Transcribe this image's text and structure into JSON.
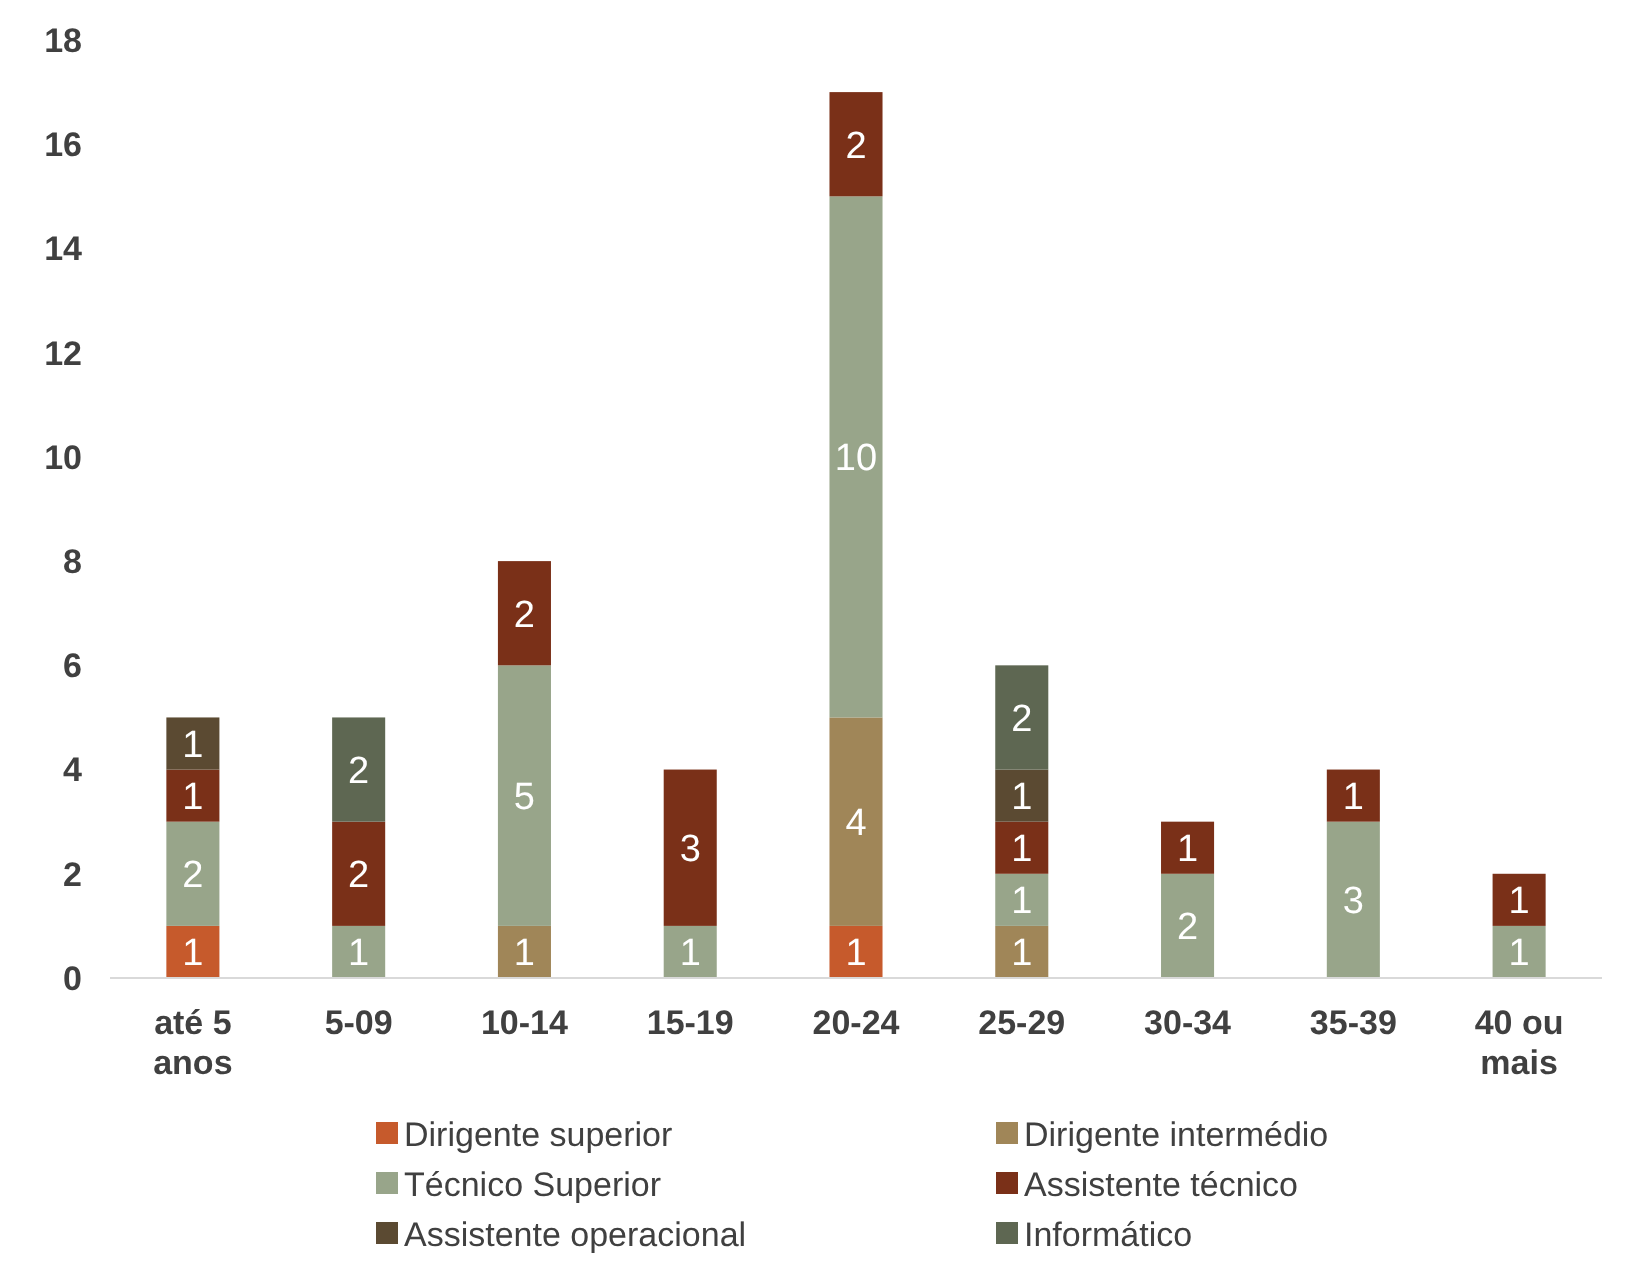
{
  "chart_data": {
    "type": "bar",
    "stacked": true,
    "categories": [
      "até 5 anos",
      "5-09",
      "10-14",
      "15-19",
      "20-24",
      "25-29",
      "30-34",
      "35-39",
      "40 ou mais"
    ],
    "series": [
      {
        "name": "Dirigente superior",
        "color": "#c65a2c",
        "values": [
          1,
          null,
          null,
          null,
          1,
          null,
          null,
          null,
          null
        ]
      },
      {
        "name": "Dirigente intermédio",
        "color": "#a08658",
        "values": [
          null,
          null,
          1,
          null,
          4,
          1,
          null,
          null,
          null
        ]
      },
      {
        "name": "Técnico Superior",
        "color": "#98a58a",
        "values": [
          2,
          1,
          5,
          1,
          10,
          1,
          2,
          3,
          1
        ]
      },
      {
        "name": "Assistente técnico",
        "color": "#7a3018",
        "values": [
          1,
          2,
          2,
          3,
          2,
          1,
          1,
          1,
          1
        ]
      },
      {
        "name": "Assistente operacional",
        "color": "#5b4a32",
        "values": [
          1,
          null,
          null,
          null,
          null,
          1,
          null,
          null,
          null
        ]
      },
      {
        "name": "Informático",
        "color": "#5e6752",
        "values": [
          null,
          2,
          null,
          null,
          null,
          2,
          null,
          null,
          null
        ]
      }
    ],
    "ylim": [
      0,
      18
    ],
    "yticks": [
      0,
      2,
      4,
      6,
      8,
      10,
      12,
      14,
      16,
      18
    ],
    "data_labels": true,
    "legend": "bottom",
    "grid": false
  }
}
